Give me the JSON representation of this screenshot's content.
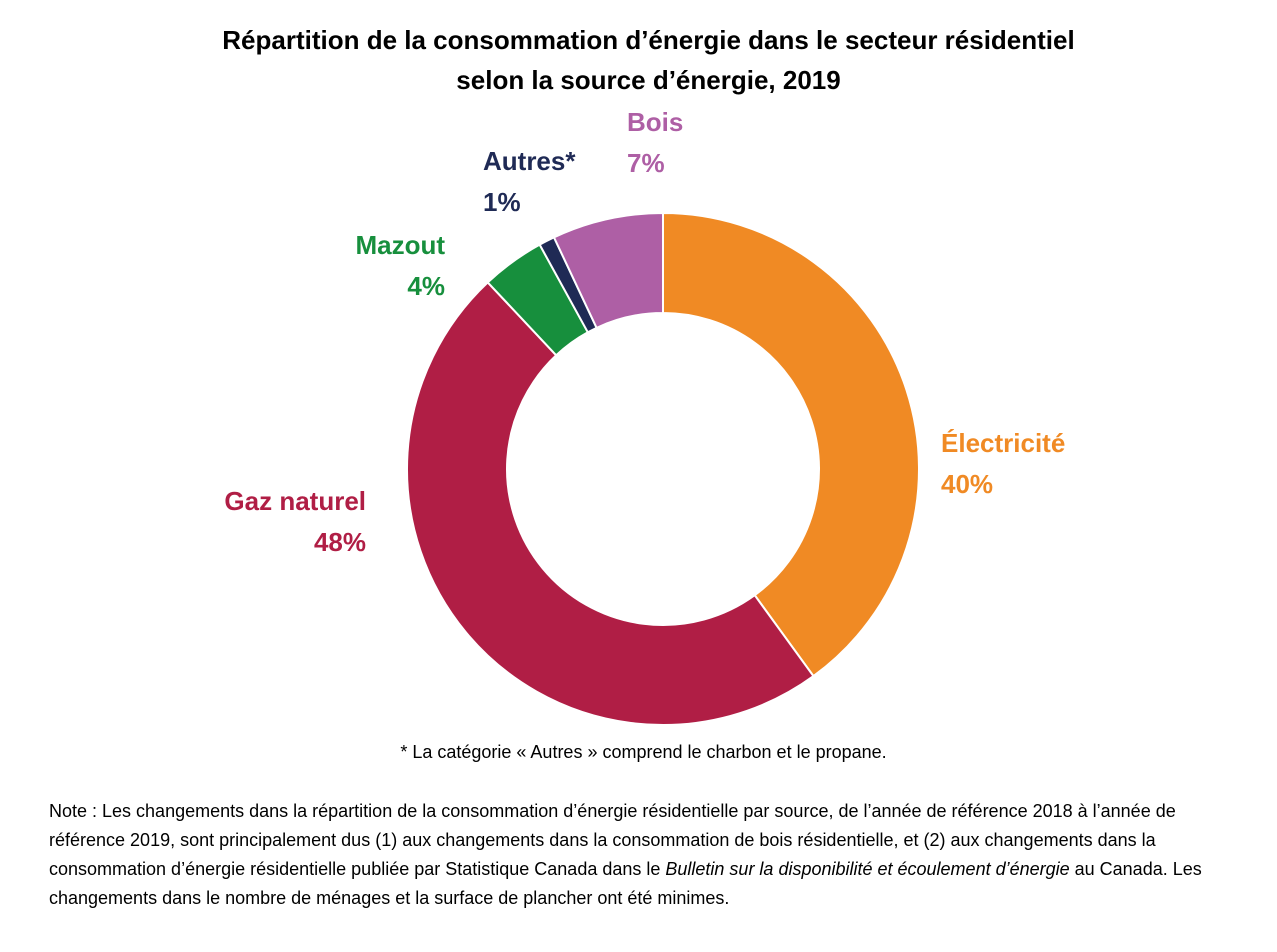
{
  "chart_data": {
    "type": "pie",
    "donut": true,
    "title_line1": "Répartition de la consommation d’énergie dans le secteur résidentiel",
    "title_line2": "selon la source d’énergie, 2019",
    "series": [
      {
        "name": "Électricité",
        "value": 40,
        "label": "40%",
        "color": "#F08A24"
      },
      {
        "name": "Gaz naturel",
        "value": 48,
        "label": "48%",
        "color": "#B01E45"
      },
      {
        "name": "Mazout",
        "value": 4,
        "label": "4%",
        "color": "#178F3D"
      },
      {
        "name": "Autres*",
        "value": 1,
        "label": "1%",
        "color": "#1F2A55"
      },
      {
        "name": "Bois",
        "value": 7,
        "label": "7%",
        "color": "#AE5FA5"
      }
    ]
  },
  "footnote": "* La catégorie « Autres » comprend le charbon et le propane.",
  "note": {
    "part1": "Note : Les changements dans la répartition de la consommation d’énergie résidentielle par source, de l’année de référence 2018 à l’année de référence 2019, sont principalement dus (1) aux changements dans la consommation de bois résidentielle, et (2) aux changements dans la consommation d’énergie résidentielle publiée par Statistique Canada dans le ",
    "italic": "Bulletin sur la disponibilité et écoulement d’énergie",
    "part2": " au Canada. Les changements dans le nombre de ménages et la surface de plancher ont été minimes."
  }
}
